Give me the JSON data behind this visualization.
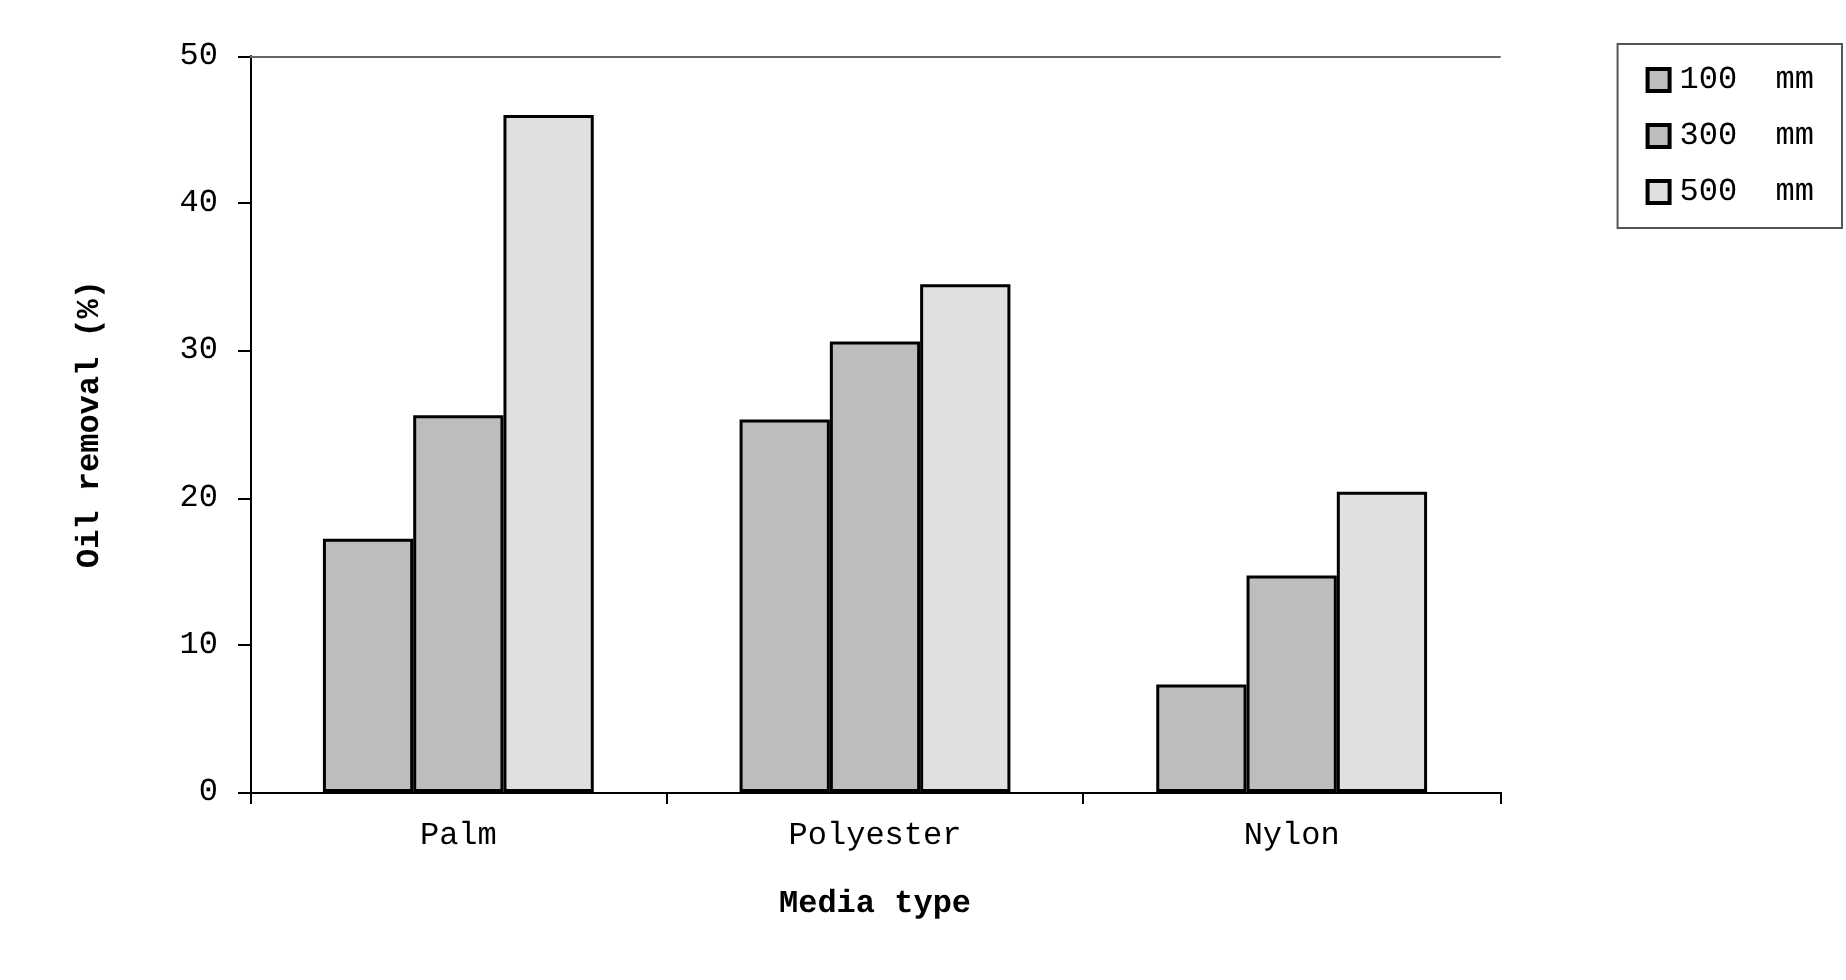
{
  "chart_data": {
    "type": "bar",
    "xlabel": "Media type",
    "ylabel": "Oil removal (%)",
    "categories": [
      "Palm",
      "Polyester",
      "Nylon"
    ],
    "series": [
      {
        "name": "100  mm",
        "color": "#bdbdbd",
        "values": [
          17.2,
          25.3,
          7.3
        ]
      },
      {
        "name": "300  mm",
        "color": "#bdbdbd",
        "values": [
          25.6,
          30.6,
          14.7
        ]
      },
      {
        "name": "500  mm",
        "color": "#e0e0e0",
        "values": [
          46.0,
          34.5,
          20.4
        ]
      }
    ],
    "ylim": [
      0,
      50
    ],
    "yticks": [
      0,
      10,
      20,
      30,
      40,
      50
    ],
    "grid": false,
    "legend": "top right"
  }
}
